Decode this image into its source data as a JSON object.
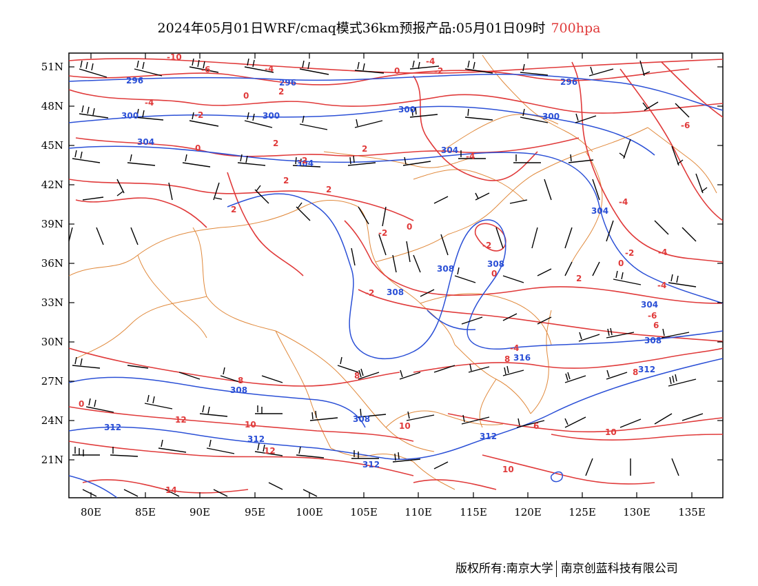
{
  "title": {
    "main": "2024年05月01日WRF/cmaq模式36km预报产品:05月01日09时",
    "level": "700hpa"
  },
  "footer": {
    "left": "版权所有:南京大学",
    "right": "南京创蓝科技有限公司"
  },
  "map": {
    "lat_labels": [
      "51N",
      "48N",
      "45N",
      "42N",
      "39N",
      "36N",
      "33N",
      "30N",
      "27N",
      "24N",
      "21N"
    ],
    "lon_labels": [
      "80E",
      "85E",
      "90E",
      "95E",
      "100E",
      "105E",
      "110E",
      "115E",
      "120E",
      "125E",
      "130E",
      "135E"
    ],
    "colors": {
      "temperature": "#e03a3a",
      "geopotential": "#2a4fd6",
      "boundary": "#e0883a",
      "wind": "#000000"
    },
    "geopotential_labels": [
      "296",
      "296",
      "296",
      "300",
      "300",
      "300",
      "300",
      "304",
      "304",
      "304",
      "304",
      "304",
      "308",
      "308",
      "308",
      "308",
      "308",
      "308",
      "312",
      "312",
      "312",
      "312",
      "312",
      "316"
    ],
    "temperature_labels": [
      "-10",
      "-6",
      "-4",
      "-4",
      "-2",
      "0",
      "-4",
      "0",
      "2",
      "-6",
      "-4",
      "2",
      "-2",
      "2",
      "0",
      "-2",
      "-4",
      "2",
      "2",
      "-2",
      "-2",
      "0",
      "0",
      "-4",
      "-2",
      "2",
      "0",
      "2",
      "-2",
      "-4",
      "-6",
      "-4",
      "6",
      "8",
      "8",
      "8",
      "8",
      "10",
      "12",
      "12",
      "10",
      "10",
      "14",
      "10",
      "6",
      "0"
    ]
  }
}
